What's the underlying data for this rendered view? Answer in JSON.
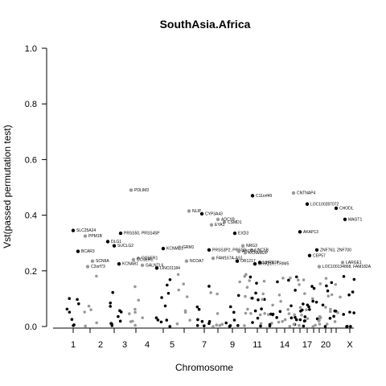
{
  "chart_data": {
    "type": "scatter",
    "title": "SouthAsia.Africa",
    "xlabel": "Chromosome",
    "ylabel": "Vst(passed permutation test)",
    "ylim": [
      0,
      1.0
    ],
    "yticks": [
      0.0,
      0.2,
      0.4,
      0.6,
      0.8,
      1.0
    ],
    "ytick_labels": [
      "0.0",
      "0.2",
      "0.4",
      "0.6",
      "0.8",
      "1.0"
    ],
    "xtick_labels": [
      "1",
      "2",
      "3",
      "4",
      "5",
      "7",
      "9",
      "11",
      "14",
      "17",
      "20",
      "X"
    ],
    "grid": false,
    "legend": "none",
    "colors": {
      "odd_chromosome": "#000000",
      "even_chromosome": "#999999",
      "axis": "#000000"
    },
    "labeled_points": [
      {
        "label": "SLC25A24",
        "chrom": "1",
        "value": 0.345
      },
      {
        "label": "BCAR3",
        "chrom": "1",
        "value": 0.27
      },
      {
        "label": "PPM1B",
        "chrom": "2",
        "value": 0.325
      },
      {
        "label": "SCN9A",
        "chrom": "2",
        "value": 0.235
      },
      {
        "label": "C2orf73",
        "chrom": "2",
        "value": 0.215
      },
      {
        "label": "PRSS50,  PRSS45P",
        "chrom": "3",
        "value": 0.335
      },
      {
        "label": "DLG1",
        "chrom": "3",
        "value": 0.305
      },
      {
        "label": "SUCLG2",
        "chrom": "3",
        "value": 0.29
      },
      {
        "label": "KCNAB1",
        "chrom": "3",
        "value": 0.225
      },
      {
        "label": "PDLIM3",
        "chrom": "4",
        "value": 0.49
      },
      {
        "label": "CCSER1",
        "chrom": "4",
        "value": 0.245
      },
      {
        "label": "CCSER1",
        "chrom": "4",
        "value": 0.24
      },
      {
        "label": "GALNTL6",
        "chrom": "4",
        "value": 0.22
      },
      {
        "label": "LINC01184",
        "chrom": "5",
        "value": 0.21
      },
      {
        "label": "KCNMB1",
        "chrom": "5",
        "value": 0.28
      },
      {
        "label": "NLIP",
        "chrom": "6",
        "value": 0.415
      },
      {
        "label": "GRM1",
        "chrom": "6",
        "value": 0.285
      },
      {
        "label": "NCOA7",
        "chrom": "6",
        "value": 0.235
      },
      {
        "label": "CYP3A43",
        "chrom": "7",
        "value": 0.405
      },
      {
        "label": "CSMD1",
        "chrom": "8",
        "value": 0.375
      },
      {
        "label": "EYA1",
        "chrom": "8",
        "value": 0.365
      },
      {
        "label": "ADCY8",
        "chrom": "8",
        "value": 0.385
      },
      {
        "label": "PRSS3P2, PRSS2",
        "chrom": "7",
        "value": 0.275
      },
      {
        "label": "FAM167A-AS1",
        "chrom": "8",
        "value": 0.245
      },
      {
        "label": "EXD3",
        "chrom": "9",
        "value": 0.335
      },
      {
        "label": "NRG3",
        "chrom": "10",
        "value": 0.29
      },
      {
        "label": "UNC5B",
        "chrom": "10",
        "value": 0.275
      },
      {
        "label": "ABCC4",
        "chrom": "10",
        "value": 0.27
      },
      {
        "label": "KCNMB2P",
        "chrom": "10",
        "value": 0.265
      },
      {
        "label": "OR1217",
        "chrom": "9",
        "value": 0.235
      },
      {
        "label": "C11orf49",
        "chrom": "11",
        "value": 0.47
      },
      {
        "label": "UHRF1P",
        "chrom": "11",
        "value": 0.23
      },
      {
        "label": "OR5Q1R, TRIM5",
        "chrom": "11",
        "value": 0.225
      },
      {
        "label": "AKAP13",
        "chrom": "15",
        "value": 0.34
      },
      {
        "label": "CNTNAP4",
        "chrom": "16",
        "value": 0.48
      },
      {
        "label": "LOC100287072",
        "chrom": "17",
        "value": 0.44
      },
      {
        "label": "CHODL",
        "chrom": "21",
        "value": 0.425
      },
      {
        "label": "MAGT1",
        "chrom": "X",
        "value": 0.385
      },
      {
        "label": "CEP57",
        "chrom": "17",
        "value": 0.255
      },
      {
        "label": "ZNF763, ZNF700",
        "chrom": "19",
        "value": 0.275
      },
      {
        "label": "LARGE1",
        "chrom": "22",
        "value": 0.23
      },
      {
        "label": "LOC100134868, FAM182A",
        "chrom": "20",
        "value": 0.215
      }
    ]
  }
}
